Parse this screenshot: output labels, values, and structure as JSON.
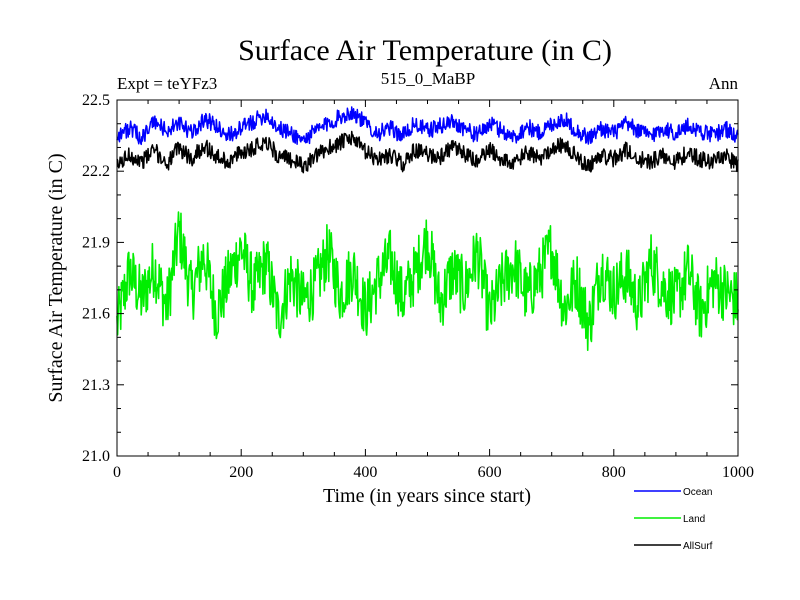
{
  "chart_data": {
    "type": "line",
    "title": "Surface Air Temperature (in C)",
    "subtitle_left": "Expt = teYFz3",
    "subtitle_center": "515_0_MaBP",
    "subtitle_right": "Ann",
    "xlabel": "Time (in years since start)",
    "ylabel": "Surface Air Temperature (in C)",
    "xlim": [
      0,
      1000
    ],
    "ylim": [
      21.0,
      22.5
    ],
    "xticks": [
      0,
      200,
      400,
      600,
      800,
      1000
    ],
    "xtick_labels": [
      "0",
      "200",
      "400",
      "600",
      "800",
      "1000"
    ],
    "yticks": [
      21.0,
      21.3,
      21.6,
      21.9,
      22.2,
      22.5
    ],
    "ytick_labels": [
      "21.0",
      "21.3",
      "21.6",
      "21.9",
      "22.2",
      "22.5"
    ],
    "legend_position": "bottom-right, below plot",
    "series": [
      {
        "name": "Ocean",
        "color": "#0000ff",
        "x": [
          0,
          20,
          40,
          60,
          80,
          100,
          120,
          140,
          160,
          180,
          200,
          220,
          240,
          260,
          280,
          300,
          320,
          340,
          360,
          380,
          400,
          420,
          440,
          460,
          480,
          500,
          520,
          540,
          560,
          580,
          600,
          620,
          640,
          660,
          680,
          700,
          720,
          740,
          760,
          780,
          800,
          820,
          840,
          860,
          880,
          900,
          920,
          940,
          960,
          980,
          1000
        ],
        "values": [
          22.35,
          22.38,
          22.34,
          22.41,
          22.37,
          22.4,
          22.36,
          22.42,
          22.39,
          22.35,
          22.38,
          22.41,
          22.44,
          22.38,
          22.36,
          22.33,
          22.37,
          22.4,
          22.43,
          22.45,
          22.4,
          22.36,
          22.38,
          22.35,
          22.4,
          22.37,
          22.39,
          22.41,
          22.38,
          22.35,
          22.4,
          22.37,
          22.34,
          22.39,
          22.36,
          22.4,
          22.42,
          22.37,
          22.34,
          22.38,
          22.36,
          22.4,
          22.37,
          22.35,
          22.38,
          22.36,
          22.39,
          22.37,
          22.35,
          22.38,
          22.34
        ]
      },
      {
        "name": "Land",
        "color": "#00ee00",
        "x": [
          0,
          20,
          40,
          60,
          80,
          100,
          120,
          140,
          160,
          180,
          200,
          220,
          240,
          260,
          280,
          300,
          320,
          340,
          360,
          380,
          400,
          420,
          440,
          460,
          480,
          500,
          520,
          540,
          560,
          580,
          600,
          620,
          640,
          660,
          680,
          700,
          720,
          740,
          760,
          780,
          800,
          820,
          840,
          860,
          880,
          900,
          920,
          940,
          960,
          980,
          1000
        ],
        "values": [
          21.55,
          21.78,
          21.66,
          21.8,
          21.62,
          21.95,
          21.68,
          21.85,
          21.6,
          21.75,
          21.88,
          21.7,
          21.82,
          21.58,
          21.76,
          21.65,
          21.72,
          21.86,
          21.68,
          21.79,
          21.61,
          21.74,
          21.83,
          21.66,
          21.77,
          21.92,
          21.64,
          21.78,
          21.7,
          21.86,
          21.59,
          21.73,
          21.81,
          21.67,
          21.76,
          21.88,
          21.62,
          21.74,
          21.55,
          21.8,
          21.69,
          21.77,
          21.63,
          21.82,
          21.71,
          21.66,
          21.78,
          21.6,
          21.74,
          21.69,
          21.65
        ]
      },
      {
        "name": "AllSurf",
        "color": "#000000",
        "x": [
          0,
          20,
          40,
          60,
          80,
          100,
          120,
          140,
          160,
          180,
          200,
          220,
          240,
          260,
          280,
          300,
          320,
          340,
          360,
          380,
          400,
          420,
          440,
          460,
          480,
          500,
          520,
          540,
          560,
          580,
          600,
          620,
          640,
          660,
          680,
          700,
          720,
          740,
          760,
          780,
          800,
          820,
          840,
          860,
          880,
          900,
          920,
          940,
          960,
          980,
          1000
        ],
        "values": [
          22.22,
          22.27,
          22.24,
          22.29,
          22.23,
          22.3,
          22.25,
          22.31,
          22.26,
          22.24,
          22.28,
          22.3,
          22.33,
          22.26,
          22.25,
          22.22,
          22.26,
          22.3,
          22.32,
          22.34,
          22.28,
          22.25,
          22.27,
          22.23,
          22.29,
          22.27,
          22.26,
          22.3,
          22.27,
          22.24,
          22.29,
          22.25,
          22.23,
          22.28,
          22.25,
          22.3,
          22.31,
          22.26,
          22.22,
          22.27,
          22.25,
          22.29,
          22.25,
          22.24,
          22.27,
          22.24,
          22.28,
          22.25,
          22.24,
          22.27,
          22.22
        ]
      }
    ]
  }
}
